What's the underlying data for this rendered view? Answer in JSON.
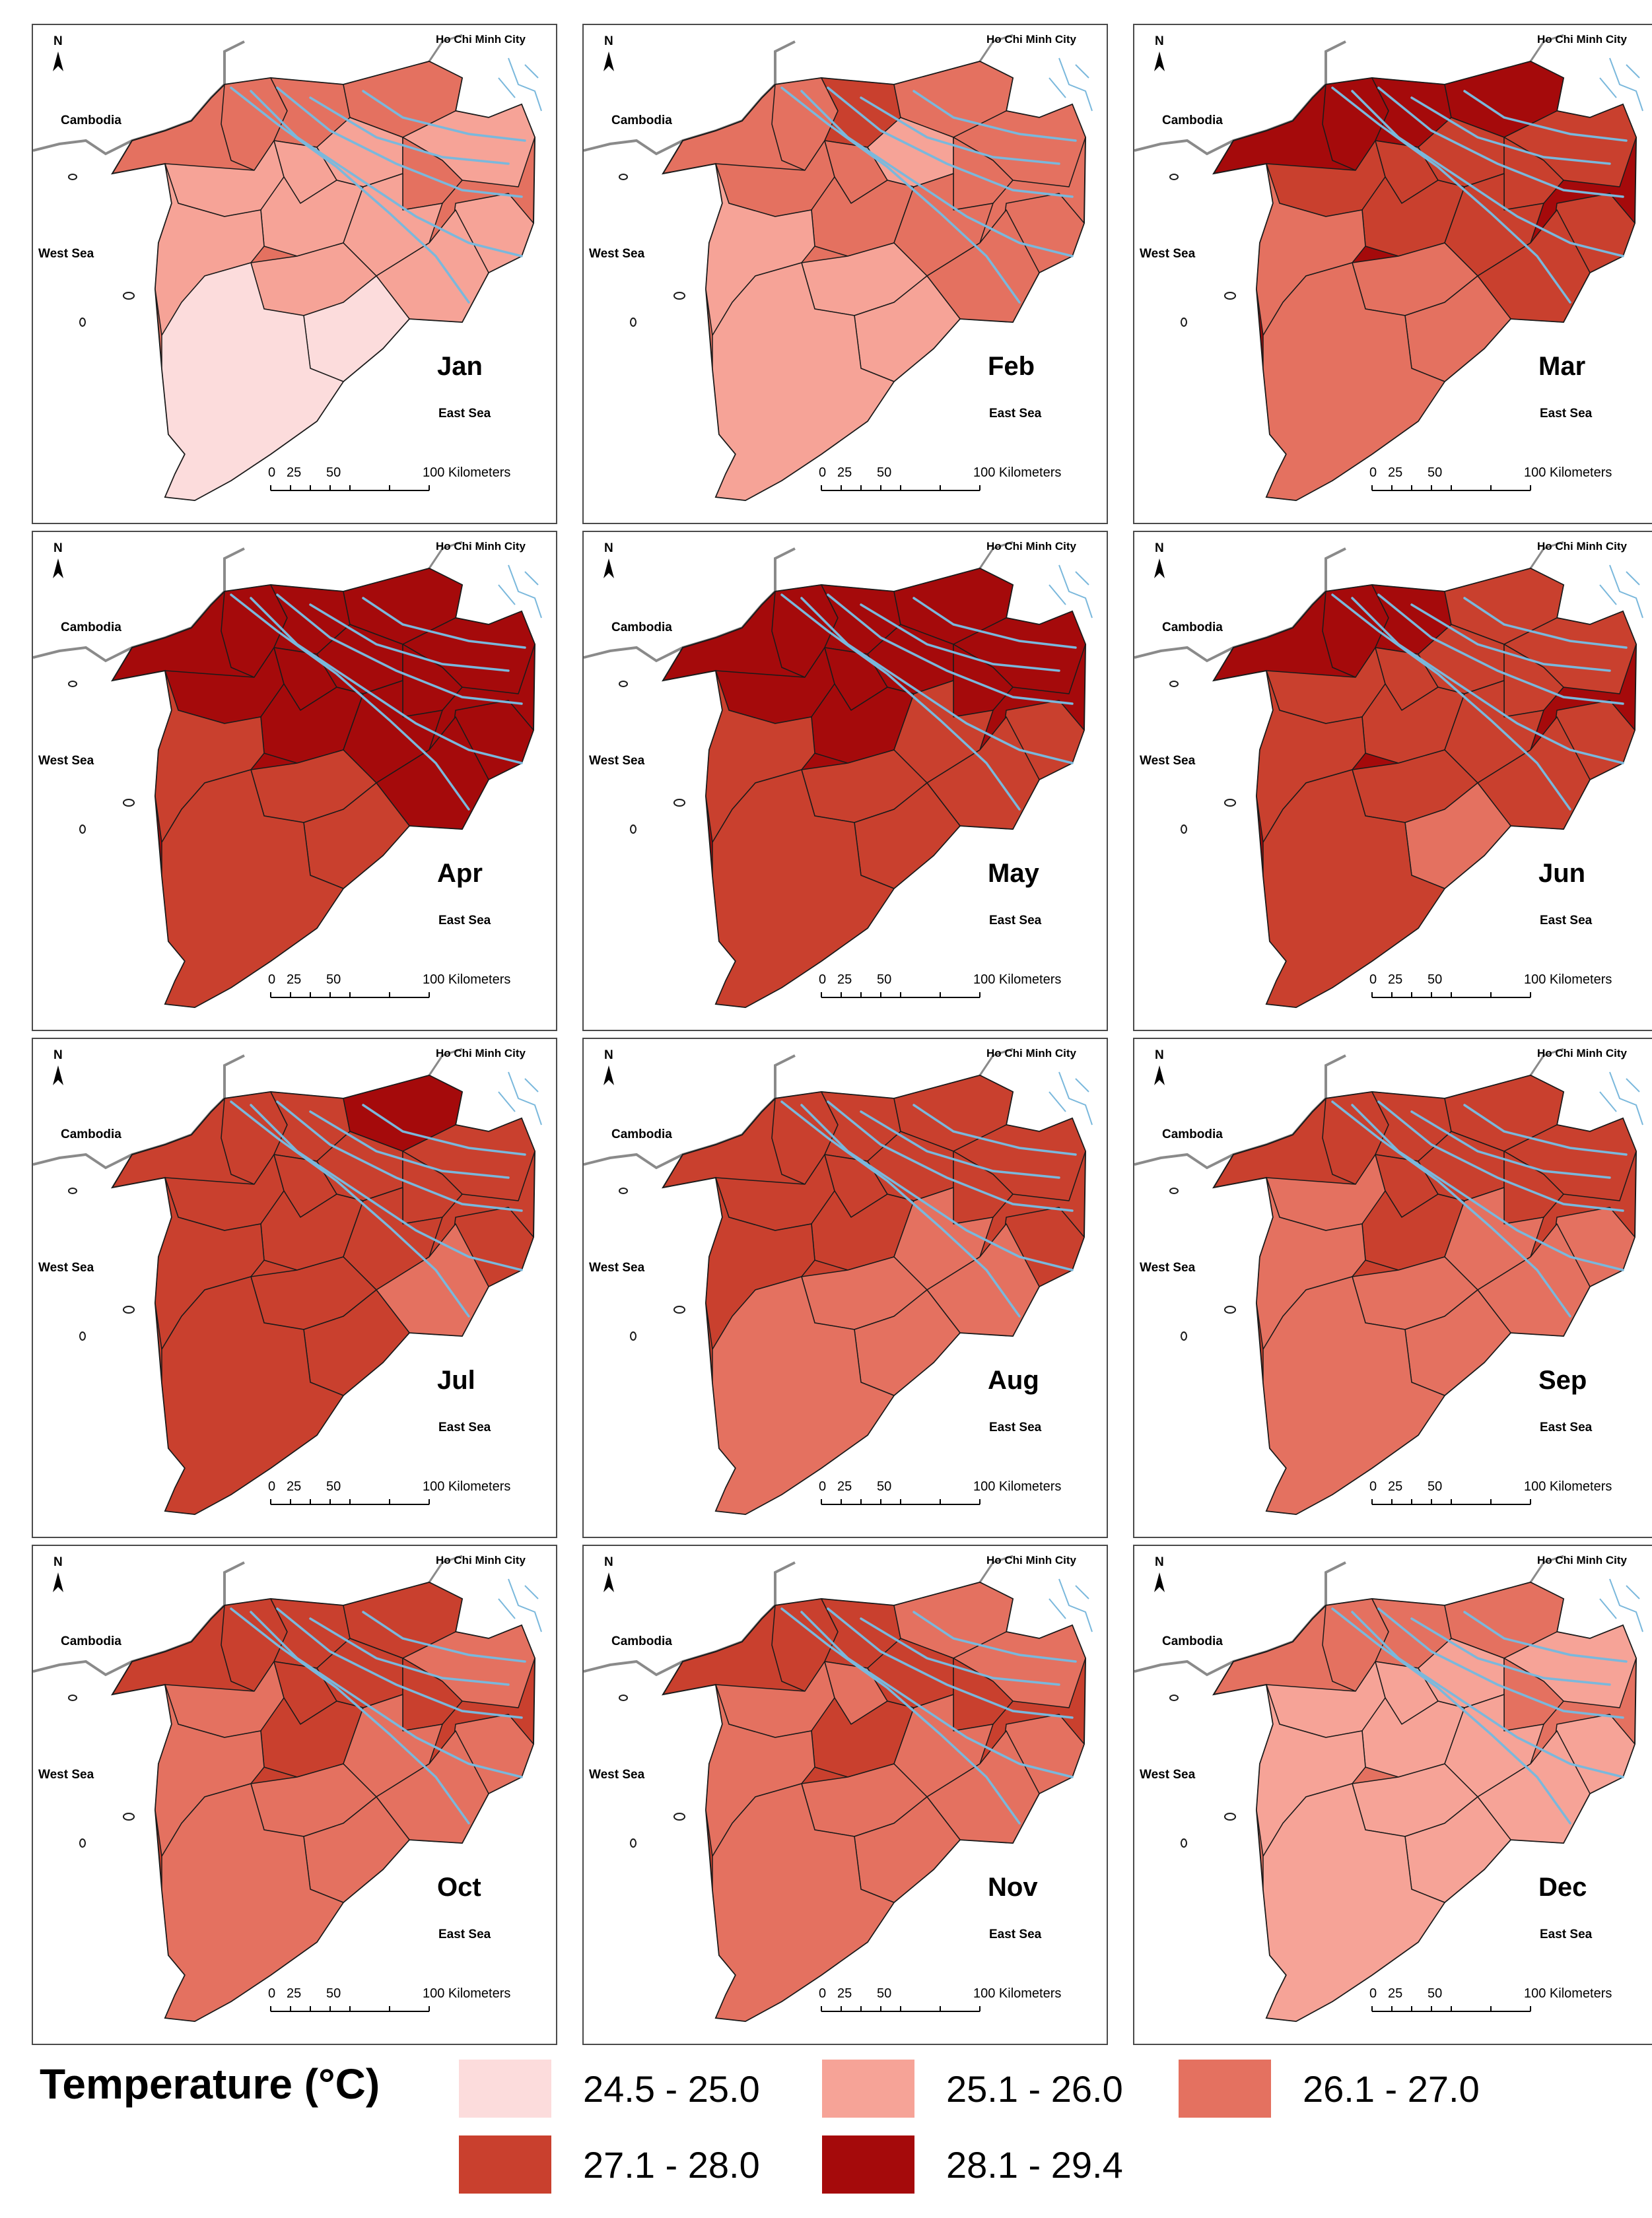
{
  "labels": {
    "hcm": "Ho Chi Minh City",
    "cambodia": "Cambodia",
    "west_sea": "West Sea",
    "east_sea": "East Sea",
    "north": "N",
    "scale_ticks": [
      "0",
      "25",
      "50",
      "100 Kilometers"
    ]
  },
  "colors": {
    "c1": "#fcdcdc",
    "c2": "#f6a397",
    "c3": "#e47160",
    "c4": "#c9402e",
    "c5": "#a50a0b",
    "river": "#7ab8dc",
    "border": "#8a8a8a"
  },
  "months": [
    {
      "name": "Jan",
      "regions": [
        "c3",
        "c3",
        "c3",
        "c2",
        "c2",
        "c2",
        "c2",
        "c3",
        "c2",
        "c2",
        "c2",
        "c2",
        "c2",
        "c2",
        "c1",
        "c1"
      ]
    },
    {
      "name": "Feb",
      "regions": [
        "c3",
        "c4",
        "c3",
        "c3",
        "c3",
        "c3",
        "c2",
        "c3",
        "c3",
        "c3",
        "c3",
        "c3",
        "c2",
        "c2",
        "c2",
        "c2"
      ]
    },
    {
      "name": "Mar",
      "regions": [
        "c5",
        "c5",
        "c5",
        "c4",
        "c4",
        "c4",
        "c4",
        "c4",
        "c4",
        "c4",
        "c4",
        "c4",
        "c3",
        "c3",
        "c3",
        "c3"
      ]
    },
    {
      "name": "Apr",
      "regions": [
        "c5",
        "c5",
        "c5",
        "c5",
        "c5",
        "c5",
        "c5",
        "c5",
        "c5",
        "c5",
        "c5",
        "c5",
        "c4",
        "c4",
        "c4",
        "c4"
      ]
    },
    {
      "name": "May",
      "regions": [
        "c5",
        "c5",
        "c5",
        "c5",
        "c5",
        "c5",
        "c5",
        "c5",
        "c4",
        "c5",
        "c4",
        "c4",
        "c4",
        "c4",
        "c4",
        "c4"
      ]
    },
    {
      "name": "Jun",
      "regions": [
        "c5",
        "c5",
        "c4",
        "c4",
        "c4",
        "c4",
        "c4",
        "c4",
        "c4",
        "c4",
        "c4",
        "c4",
        "c4",
        "c4",
        "c3",
        "c4"
      ]
    },
    {
      "name": "Jul",
      "regions": [
        "c4",
        "c4",
        "c5",
        "c4",
        "c4",
        "c4",
        "c4",
        "c4",
        "c4",
        "c4",
        "c4",
        "c3",
        "c4",
        "c4",
        "c4",
        "c4"
      ]
    },
    {
      "name": "Aug",
      "regions": [
        "c4",
        "c4",
        "c4",
        "c4",
        "c4",
        "c4",
        "c4",
        "c4",
        "c4",
        "c4",
        "c3",
        "c3",
        "c4",
        "c3",
        "c3",
        "c3"
      ]
    },
    {
      "name": "Sep",
      "regions": [
        "c4",
        "c4",
        "c4",
        "c4",
        "c3",
        "c4",
        "c4",
        "c4",
        "c3",
        "c4",
        "c3",
        "c3",
        "c3",
        "c3",
        "c3",
        "c3"
      ]
    },
    {
      "name": "Oct",
      "regions": [
        "c4",
        "c4",
        "c4",
        "c3",
        "c3",
        "c4",
        "c4",
        "c4",
        "c3",
        "c4",
        "c3",
        "c3",
        "c3",
        "c3",
        "c3",
        "c3"
      ]
    },
    {
      "name": "Nov",
      "regions": [
        "c4",
        "c4",
        "c3",
        "c3",
        "c3",
        "c3",
        "c4",
        "c4",
        "c3",
        "c4",
        "c3",
        "c3",
        "c3",
        "c3",
        "c3",
        "c3"
      ]
    },
    {
      "name": "Dec",
      "regions": [
        "c3",
        "c3",
        "c3",
        "c2",
        "c2",
        "c2",
        "c2",
        "c3",
        "c2",
        "c2",
        "c2",
        "c2",
        "c2",
        "c2",
        "c2",
        "c2"
      ]
    }
  ],
  "legend": {
    "title": "Temperature (°C)",
    "items": [
      {
        "label": "24.5 - 25.0",
        "color": "c1"
      },
      {
        "label": "25.1 - 26.0",
        "color": "c2"
      },
      {
        "label": "26.1 - 27.0",
        "color": "c3"
      },
      {
        "label": "27.1 - 28.0",
        "color": "c4"
      },
      {
        "label": "28.1 - 29.4",
        "color": "c5"
      }
    ]
  }
}
